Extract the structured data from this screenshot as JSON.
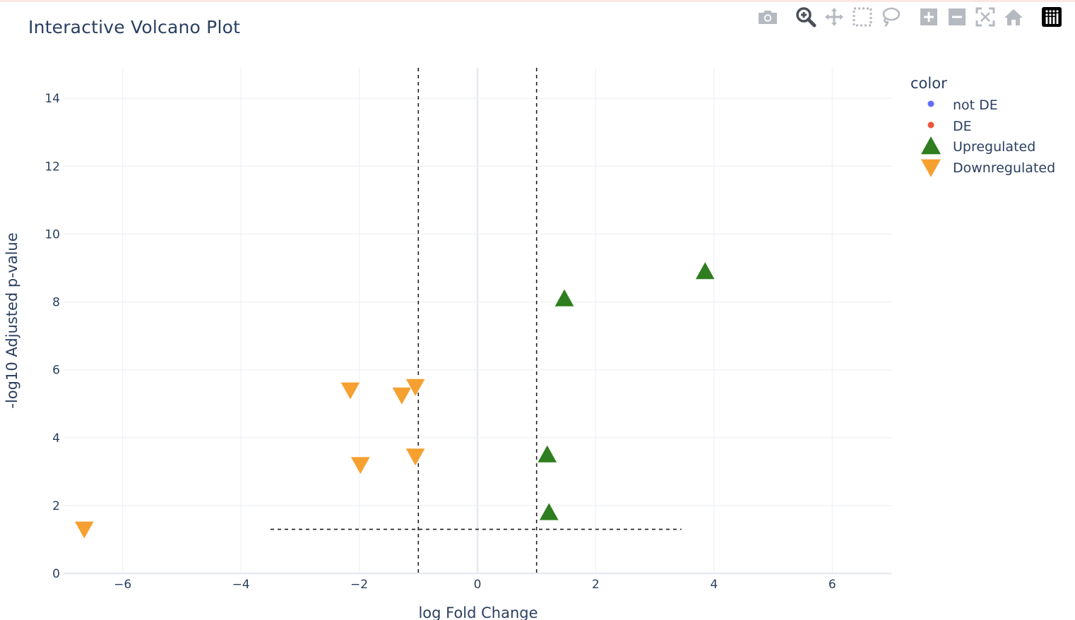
{
  "toolbar": {
    "icons": [
      {
        "name": "camera-icon",
        "label": "Download plot as a png"
      },
      {
        "name": "zoom-icon",
        "label": "Zoom"
      },
      {
        "name": "pan-icon",
        "label": "Pan"
      },
      {
        "name": "box-select-icon",
        "label": "Box Select"
      },
      {
        "name": "lasso-select-icon",
        "label": "Lasso Select"
      },
      {
        "name": "zoom-in-icon",
        "label": "Zoom in"
      },
      {
        "name": "zoom-out-icon",
        "label": "Zoom out"
      },
      {
        "name": "autoscale-icon",
        "label": "Autoscale"
      },
      {
        "name": "reset-axes-icon",
        "label": "Reset axes"
      },
      {
        "name": "plotly-logo-icon",
        "label": "Produced with Plotly"
      }
    ]
  },
  "chart_data": {
    "type": "scatter",
    "title": "Interactive Volcano Plot",
    "xlabel": "log Fold Change",
    "ylabel": "-log10 Adjusted p-value",
    "xlim": [
      -7.0,
      7.0
    ],
    "ylim": [
      0,
      14.9
    ],
    "xticks": [
      -6,
      -4,
      -2,
      0,
      2,
      4,
      6
    ],
    "xtick_labels": [
      "−6",
      "−4",
      "−2",
      "0",
      "2",
      "4",
      "6"
    ],
    "yticks": [
      0,
      2,
      4,
      6,
      8,
      10,
      12,
      14
    ],
    "ytick_labels": [
      "0",
      "2",
      "4",
      "6",
      "8",
      "10",
      "12",
      "14"
    ],
    "grid": true,
    "legend": {
      "title": "color",
      "placement": "top-right"
    },
    "series": [
      {
        "name": "not DE",
        "marker": "circle",
        "color": "#636efa",
        "points": []
      },
      {
        "name": "DE",
        "marker": "circle",
        "color": "#ef553b",
        "points": []
      },
      {
        "name": "Upregulated",
        "marker": "triangle-up",
        "color": "#2e7d1e",
        "points": [
          {
            "x": 3.85,
            "y": 8.9
          },
          {
            "x": 1.47,
            "y": 8.1
          },
          {
            "x": 1.18,
            "y": 3.5
          },
          {
            "x": 1.21,
            "y": 1.8
          }
        ]
      },
      {
        "name": "Downregulated",
        "marker": "triangle-down",
        "color": "#f5a030",
        "points": [
          {
            "x": -6.65,
            "y": 1.3
          },
          {
            "x": -2.15,
            "y": 5.4
          },
          {
            "x": -1.28,
            "y": 5.25
          },
          {
            "x": -1.05,
            "y": 5.5
          },
          {
            "x": -1.05,
            "y": 3.45
          },
          {
            "x": -1.98,
            "y": 3.2
          }
        ]
      }
    ],
    "threshold_lines": [
      {
        "orientation": "vertical",
        "x": -1,
        "y_range": [
          0,
          14.9
        ],
        "style": "dashed"
      },
      {
        "orientation": "vertical",
        "x": 1,
        "y_range": [
          0,
          14.9
        ],
        "style": "dashed"
      },
      {
        "orientation": "horizontal",
        "y": 1.3,
        "x_range": [
          -3.5,
          3.45
        ],
        "style": "dashed"
      }
    ]
  }
}
